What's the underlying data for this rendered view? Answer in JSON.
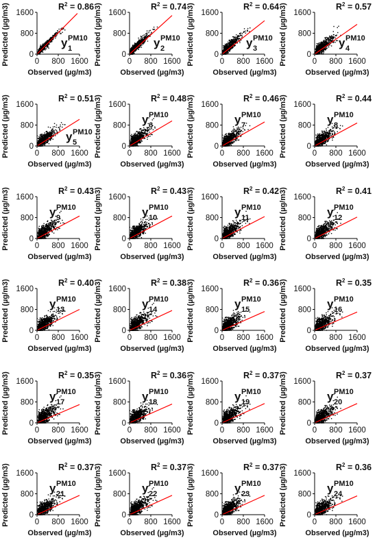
{
  "chart_data": {
    "type": "scatter",
    "panel_count": 24,
    "layout": {
      "rows": 6,
      "cols": 4
    },
    "xlabel": "Observed (µg/m3)",
    "ylabel": "Predicted (µg/m3)",
    "xlim": [
      0,
      1600
    ],
    "ylim": [
      0,
      1600
    ],
    "xticks": [
      "0",
      "800",
      "1600"
    ],
    "yticks": [
      "0",
      "800",
      "1600"
    ],
    "x_tick_values": [
      0,
      800,
      1600
    ],
    "y_tick_values": [
      0,
      800,
      1600
    ],
    "grid": false,
    "point_color": "#000000",
    "fit_line_color": "#ff0000",
    "r2_prefix": "R",
    "r2_sup": "2",
    "target_symbol": "y",
    "target_superscript": "PM10",
    "panels": [
      {
        "target_index": "1",
        "r2": "= 0.86",
        "fit_line": {
          "x": [
            0,
            1520
          ],
          "y": [
            0,
            1560
          ]
        }
      },
      {
        "target_index": "2",
        "r2": "= 0.74",
        "fit_line": {
          "x": [
            0,
            1600
          ],
          "y": [
            0,
            1480
          ]
        }
      },
      {
        "target_index": "3",
        "r2": "= 0.64",
        "fit_line": {
          "x": [
            0,
            1600
          ],
          "y": [
            0,
            1280
          ]
        }
      },
      {
        "target_index": "4",
        "r2": "= 0.57",
        "fit_line": {
          "x": [
            0,
            1600
          ],
          "y": [
            0,
            1140
          ]
        }
      },
      {
        "target_index": "5",
        "r2": "= 0.51",
        "fit_line": {
          "x": [
            0,
            1600
          ],
          "y": [
            0,
            1020
          ]
        }
      },
      {
        "target_index": "6",
        "r2": "= 0.48",
        "fit_line": {
          "x": [
            0,
            1600
          ],
          "y": [
            0,
            960
          ]
        }
      },
      {
        "target_index": "7",
        "r2": "= 0.46",
        "fit_line": {
          "x": [
            0,
            1600
          ],
          "y": [
            0,
            920
          ]
        }
      },
      {
        "target_index": "8",
        "r2": "= 0.44",
        "fit_line": {
          "x": [
            0,
            1600
          ],
          "y": [
            0,
            880
          ]
        }
      },
      {
        "target_index": "9",
        "r2": "= 0.43",
        "fit_line": {
          "x": [
            0,
            1600
          ],
          "y": [
            0,
            860
          ]
        }
      },
      {
        "target_index": "10",
        "r2": "= 0.43",
        "fit_line": {
          "x": [
            0,
            1600
          ],
          "y": [
            0,
            860
          ]
        }
      },
      {
        "target_index": "11",
        "r2": "= 0.42",
        "fit_line": {
          "x": [
            0,
            1600
          ],
          "y": [
            0,
            840
          ]
        }
      },
      {
        "target_index": "12",
        "r2": "= 0.41",
        "fit_line": {
          "x": [
            0,
            1600
          ],
          "y": [
            0,
            820
          ]
        }
      },
      {
        "target_index": "13",
        "r2": "= 0.40",
        "fit_line": {
          "x": [
            0,
            1600
          ],
          "y": [
            0,
            800
          ]
        }
      },
      {
        "target_index": "14",
        "r2": "= 0.38",
        "fit_line": {
          "x": [
            0,
            1600
          ],
          "y": [
            0,
            760
          ]
        }
      },
      {
        "target_index": "15",
        "r2": "= 0.36",
        "fit_line": {
          "x": [
            0,
            1600
          ],
          "y": [
            0,
            720
          ]
        }
      },
      {
        "target_index": "16",
        "r2": "= 0.35",
        "fit_line": {
          "x": [
            0,
            1600
          ],
          "y": [
            0,
            700
          ]
        }
      },
      {
        "target_index": "17",
        "r2": "= 0.35",
        "fit_line": {
          "x": [
            0,
            1600
          ],
          "y": [
            0,
            700
          ]
        }
      },
      {
        "target_index": "18",
        "r2": "= 0.36",
        "fit_line": {
          "x": [
            0,
            1600
          ],
          "y": [
            0,
            720
          ]
        }
      },
      {
        "target_index": "19",
        "r2": "= 0.37",
        "fit_line": {
          "x": [
            0,
            1600
          ],
          "y": [
            0,
            740
          ]
        }
      },
      {
        "target_index": "20",
        "r2": "= 0.37",
        "fit_line": {
          "x": [
            0,
            1600
          ],
          "y": [
            0,
            740
          ]
        }
      },
      {
        "target_index": "21",
        "r2": "= 0.37",
        "fit_line": {
          "x": [
            0,
            1600
          ],
          "y": [
            0,
            740
          ]
        }
      },
      {
        "target_index": "22",
        "r2": "= 0.37",
        "fit_line": {
          "x": [
            0,
            1600
          ],
          "y": [
            0,
            740
          ]
        }
      },
      {
        "target_index": "23",
        "r2": "= 0.37",
        "fit_line": {
          "x": [
            0,
            1600
          ],
          "y": [
            0,
            740
          ]
        }
      },
      {
        "target_index": "24",
        "r2": "= 0.36",
        "fit_line": {
          "x": [
            0,
            1600
          ],
          "y": [
            0,
            720
          ]
        }
      }
    ]
  }
}
